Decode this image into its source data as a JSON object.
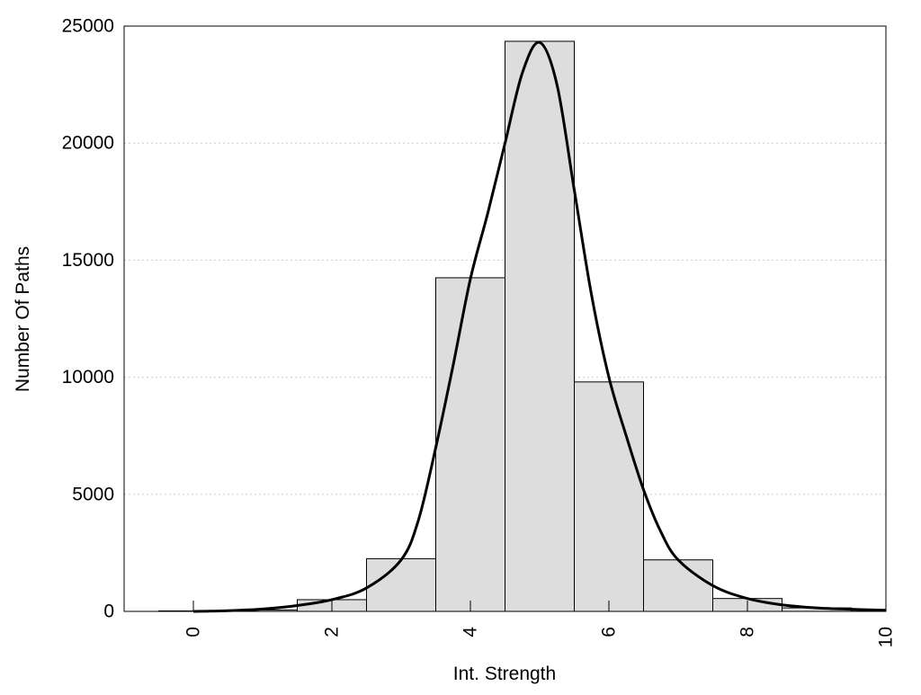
{
  "chart_data": {
    "type": "bar",
    "title": "",
    "xlabel": "Int. Strength",
    "ylabel": "Number Of Paths",
    "xlim": [
      -1,
      10
    ],
    "ylim": [
      0,
      25000
    ],
    "xticks": [
      0,
      2,
      4,
      6,
      8,
      10
    ],
    "yticks": [
      0,
      5000,
      10000,
      15000,
      20000,
      25000
    ],
    "grid": "horizontal dotted",
    "legend": "none",
    "bar_width": 1,
    "bars": {
      "x": [
        0,
        1,
        2,
        3,
        4,
        5,
        6,
        7,
        8,
        9,
        10
      ],
      "values": [
        20,
        60,
        500,
        2250,
        14250,
        24350,
        9800,
        2200,
        550,
        150,
        50
      ]
    },
    "fit_curve": {
      "x": [
        0,
        0.5,
        1,
        1.5,
        2,
        2.5,
        3,
        3.25,
        3.5,
        3.75,
        4,
        4.25,
        4.5,
        4.75,
        5,
        5.25,
        5.5,
        5.75,
        6,
        6.25,
        6.5,
        6.75,
        7,
        7.5,
        8,
        8.5,
        9,
        9.5,
        10
      ],
      "y": [
        0,
        30,
        100,
        250,
        500,
        1000,
        2200,
        3900,
        7000,
        10500,
        14200,
        17000,
        20000,
        23000,
        24300,
        22500,
        18000,
        13500,
        10000,
        7500,
        5200,
        3400,
        2200,
        1100,
        550,
        280,
        150,
        90,
        50
      ]
    },
    "colors": {
      "bar_fill": "#dddddd",
      "bar_stroke": "#000000",
      "curve": "#000000",
      "grid": "#cccccc"
    }
  }
}
